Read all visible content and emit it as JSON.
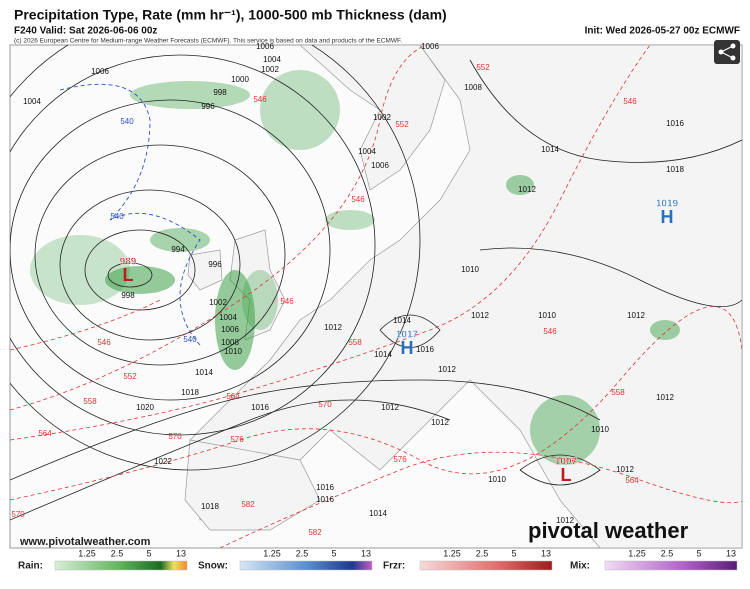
{
  "header": {
    "title": "Precipitation Type, Rate (mm hr⁻¹), 1000-500 mb Thickness (dam)",
    "valid": "F240 Valid: Sat 2026-06-06 00z",
    "init": "Init: Wed 2026-05-27 00z ECMWF",
    "credit": "(c) 2026 European Centre for Medium-range Weather Forecasts (ECMWF). This service is based on data and products of the ECMWF."
  },
  "map": {
    "centers": [
      {
        "type": "L",
        "value": "989"
      },
      {
        "type": "H",
        "value": "1017"
      },
      {
        "type": "H",
        "value": "1019"
      },
      {
        "type": "L",
        "value": "1007"
      }
    ],
    "isobar_labels": [
      1006,
      1006,
      1006,
      1004,
      1002,
      1000,
      998,
      996,
      1004,
      1008,
      1002,
      1004,
      1006,
      1014,
      1012,
      1016,
      1018,
      1010,
      1012,
      1014,
      1012,
      1016,
      1014,
      1012,
      1010,
      1012,
      1012,
      1014,
      1018,
      1020,
      1016,
      1012,
      1012,
      1022,
      1016,
      1016,
      1014,
      1018,
      1010,
      1012,
      1012,
      1010,
      996,
      998,
      994,
      1002,
      1004,
      1006,
      1008,
      1010
    ],
    "thickness_labels": [
      546,
      552,
      546,
      552,
      546,
      546,
      558,
      546,
      552,
      546,
      558,
      564,
      570,
      564,
      570,
      576,
      576,
      558,
      564,
      582,
      582,
      570
    ],
    "thickness_540_labels": [
      540,
      540,
      540
    ]
  },
  "watermark": {
    "url": "www.pivotalweather.com",
    "brand": "pivotal weather"
  },
  "legend": {
    "groups": [
      "Rain:",
      "Snow:",
      "Frzr:",
      "Mix:"
    ],
    "ticks": [
      1.25,
      2.5,
      5,
      13
    ]
  }
}
